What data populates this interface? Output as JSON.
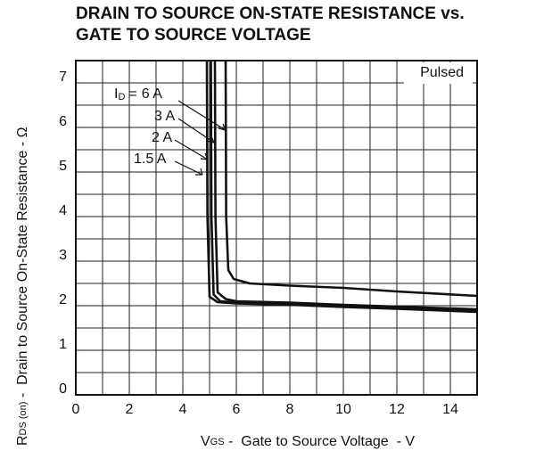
{
  "chart_data": {
    "type": "line",
    "title_lines": [
      "DRAIN TO SOURCE ON-STATE RESISTANCE vs.",
      "GATE TO SOURCE VOLTAGE"
    ],
    "x_label": {
      "symbol": "V",
      "subscript": "GS",
      "text": " -  Gate to Source Voltage  - V"
    },
    "y_label": {
      "symbol": "R",
      "subscript": "DS (on)",
      "text": " -  Drain to Source On-State Resistance - Ω"
    },
    "annotation": "Pulsed",
    "current_label": {
      "symbol": "I",
      "subscript": "D",
      "operator": "="
    },
    "xlim": [
      0,
      15
    ],
    "ylim": [
      0,
      7.5
    ],
    "xticks": [
      0,
      2,
      4,
      6,
      8,
      10,
      12,
      14
    ],
    "yticks": [
      0,
      1,
      2,
      3,
      4,
      5,
      6,
      7
    ],
    "x_grid_step": 1,
    "y_grid_step": 0.5,
    "grid": true,
    "series": [
      {
        "name": "6 A",
        "color": "#111111",
        "x": [
          5.6,
          5.62,
          5.7,
          5.9,
          6.5,
          8,
          10,
          12,
          15
        ],
        "values": [
          7.5,
          4,
          2.8,
          2.6,
          2.5,
          2.45,
          2.4,
          2.32,
          2.22
        ]
      },
      {
        "name": "3 A",
        "color": "#111111",
        "x": [
          5.2,
          5.22,
          5.3,
          5.6,
          6,
          8,
          10,
          12,
          15
        ],
        "values": [
          7.5,
          4,
          2.3,
          2.15,
          2.1,
          2.07,
          2.02,
          1.98,
          1.92
        ]
      },
      {
        "name": "2 A",
        "color": "#111111",
        "x": [
          5.05,
          5.07,
          5.15,
          5.4,
          6,
          8,
          10,
          12,
          15
        ],
        "values": [
          7.5,
          4,
          2.25,
          2.1,
          2.07,
          2.05,
          2.0,
          1.96,
          1.9
        ]
      },
      {
        "name": "1.5 A",
        "color": "#111111",
        "x": [
          4.9,
          4.92,
          5.0,
          5.3,
          6,
          8,
          10,
          12,
          15
        ],
        "values": [
          7.5,
          4,
          2.2,
          2.08,
          2.05,
          2.02,
          1.97,
          1.93,
          1.86
        ]
      }
    ]
  }
}
